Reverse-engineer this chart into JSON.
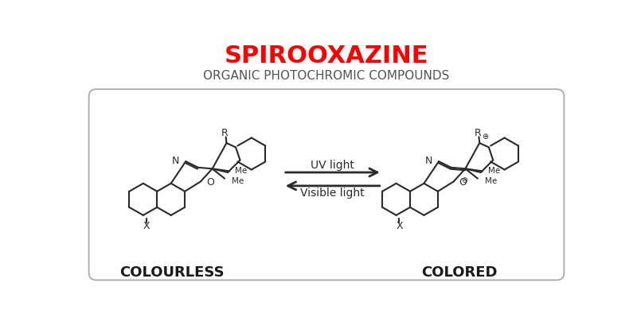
{
  "title": "SPIROOXAZINE",
  "subtitle": "ORGANIC PHOTOCHROMIC COMPOUNDS",
  "title_color": "#FF0000",
  "subtitle_color": "#555555",
  "label_left": "COLOURLESS",
  "label_right": "COLORED",
  "uv_text": "UV light",
  "vis_text": "Visible light",
  "bg_color": "#FFFFFF",
  "line_color": "#2a2a2a",
  "fig_width": 8.0,
  "fig_height": 4.09,
  "lw": 1.5
}
